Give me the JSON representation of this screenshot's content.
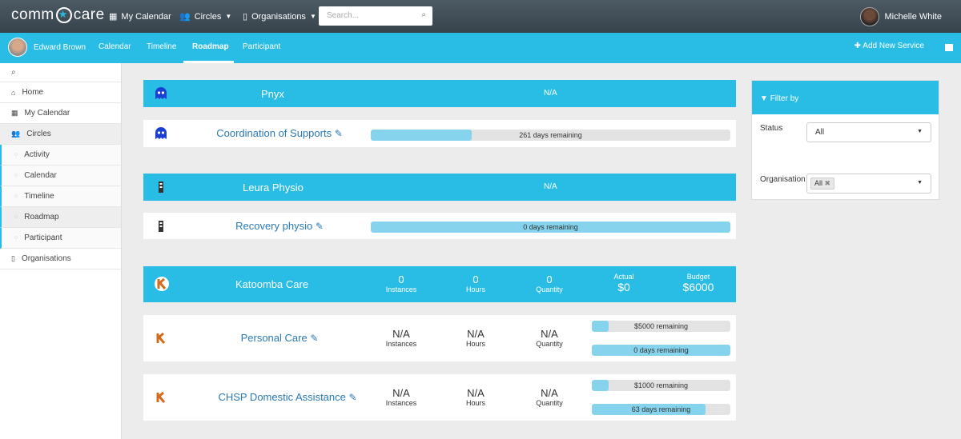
{
  "topbar": {
    "logo_left": "comm",
    "logo_right": "care",
    "nav": [
      {
        "label": "My Calendar",
        "icon": "calendar-icon"
      },
      {
        "label": "Circles",
        "icon": "users-icon"
      },
      {
        "label": "Organisations",
        "icon": "building-icon"
      }
    ],
    "search_placeholder": "Search...",
    "user_name": "Michelle White"
  },
  "subbar": {
    "patient_name": "Edward Brown",
    "tabs": [
      "Calendar",
      "Timeline",
      "Roadmap",
      "Participant"
    ],
    "active_tab": "Roadmap",
    "add_service": "Add New Service"
  },
  "sidebar": {
    "items": [
      {
        "label": "Home",
        "icon": "home-icon"
      },
      {
        "label": "My Calendar",
        "icon": "calendar-icon"
      },
      {
        "label": "Circles",
        "icon": "users-icon"
      },
      {
        "label": "Activity"
      },
      {
        "label": "Calendar"
      },
      {
        "label": "Timeline"
      },
      {
        "label": "Roadmap"
      },
      {
        "label": "Participant"
      },
      {
        "label": "Organisations",
        "icon": "building-icon"
      }
    ]
  },
  "orgs": [
    {
      "name": "Pnyx",
      "header_value": "N/A",
      "services": [
        {
          "name": "Coordination of Supports",
          "progress_label": "261 days remaining",
          "progress": 0.28
        }
      ]
    },
    {
      "name": "Leura Physio",
      "header_value": "N/A",
      "services": [
        {
          "name": "Recovery physio",
          "progress_label": "0 days remaining",
          "progress": 1.0
        }
      ]
    },
    {
      "name": "Katoomba Care",
      "stats": [
        {
          "value": "0",
          "label": "Instances"
        },
        {
          "value": "0",
          "label": "Hours"
        },
        {
          "value": "0",
          "label": "Quantity"
        },
        {
          "value": "$0",
          "label": "Actual"
        },
        {
          "value": "$6000",
          "label": "Budget"
        }
      ],
      "services": [
        {
          "name": "Personal Care",
          "stats": [
            {
              "value": "N/A",
              "label": "Instances"
            },
            {
              "value": "N/A",
              "label": "Hours"
            },
            {
              "value": "N/A",
              "label": "Quantity"
            }
          ],
          "budget_label": "$5000 remaining",
          "budget_progress": 0.12,
          "days_label": "0 days remaining",
          "days_progress": 1.0
        },
        {
          "name": "CHSP Domestic Assistance",
          "stats": [
            {
              "value": "N/A",
              "label": "Instances"
            },
            {
              "value": "N/A",
              "label": "Hours"
            },
            {
              "value": "N/A",
              "label": "Quantity"
            }
          ],
          "budget_label": "$1000 remaining",
          "budget_progress": 0.12,
          "days_label": "63 days remaining",
          "days_progress": 0.82
        }
      ]
    }
  ],
  "filter": {
    "title": "Filter by",
    "status_label": "Status",
    "status_value": "All",
    "org_label": "Organisation",
    "org_tag": "All"
  },
  "colors": {
    "accent": "#29bde6",
    "topbar": "#3f4b54",
    "link": "#2a7ab8"
  }
}
